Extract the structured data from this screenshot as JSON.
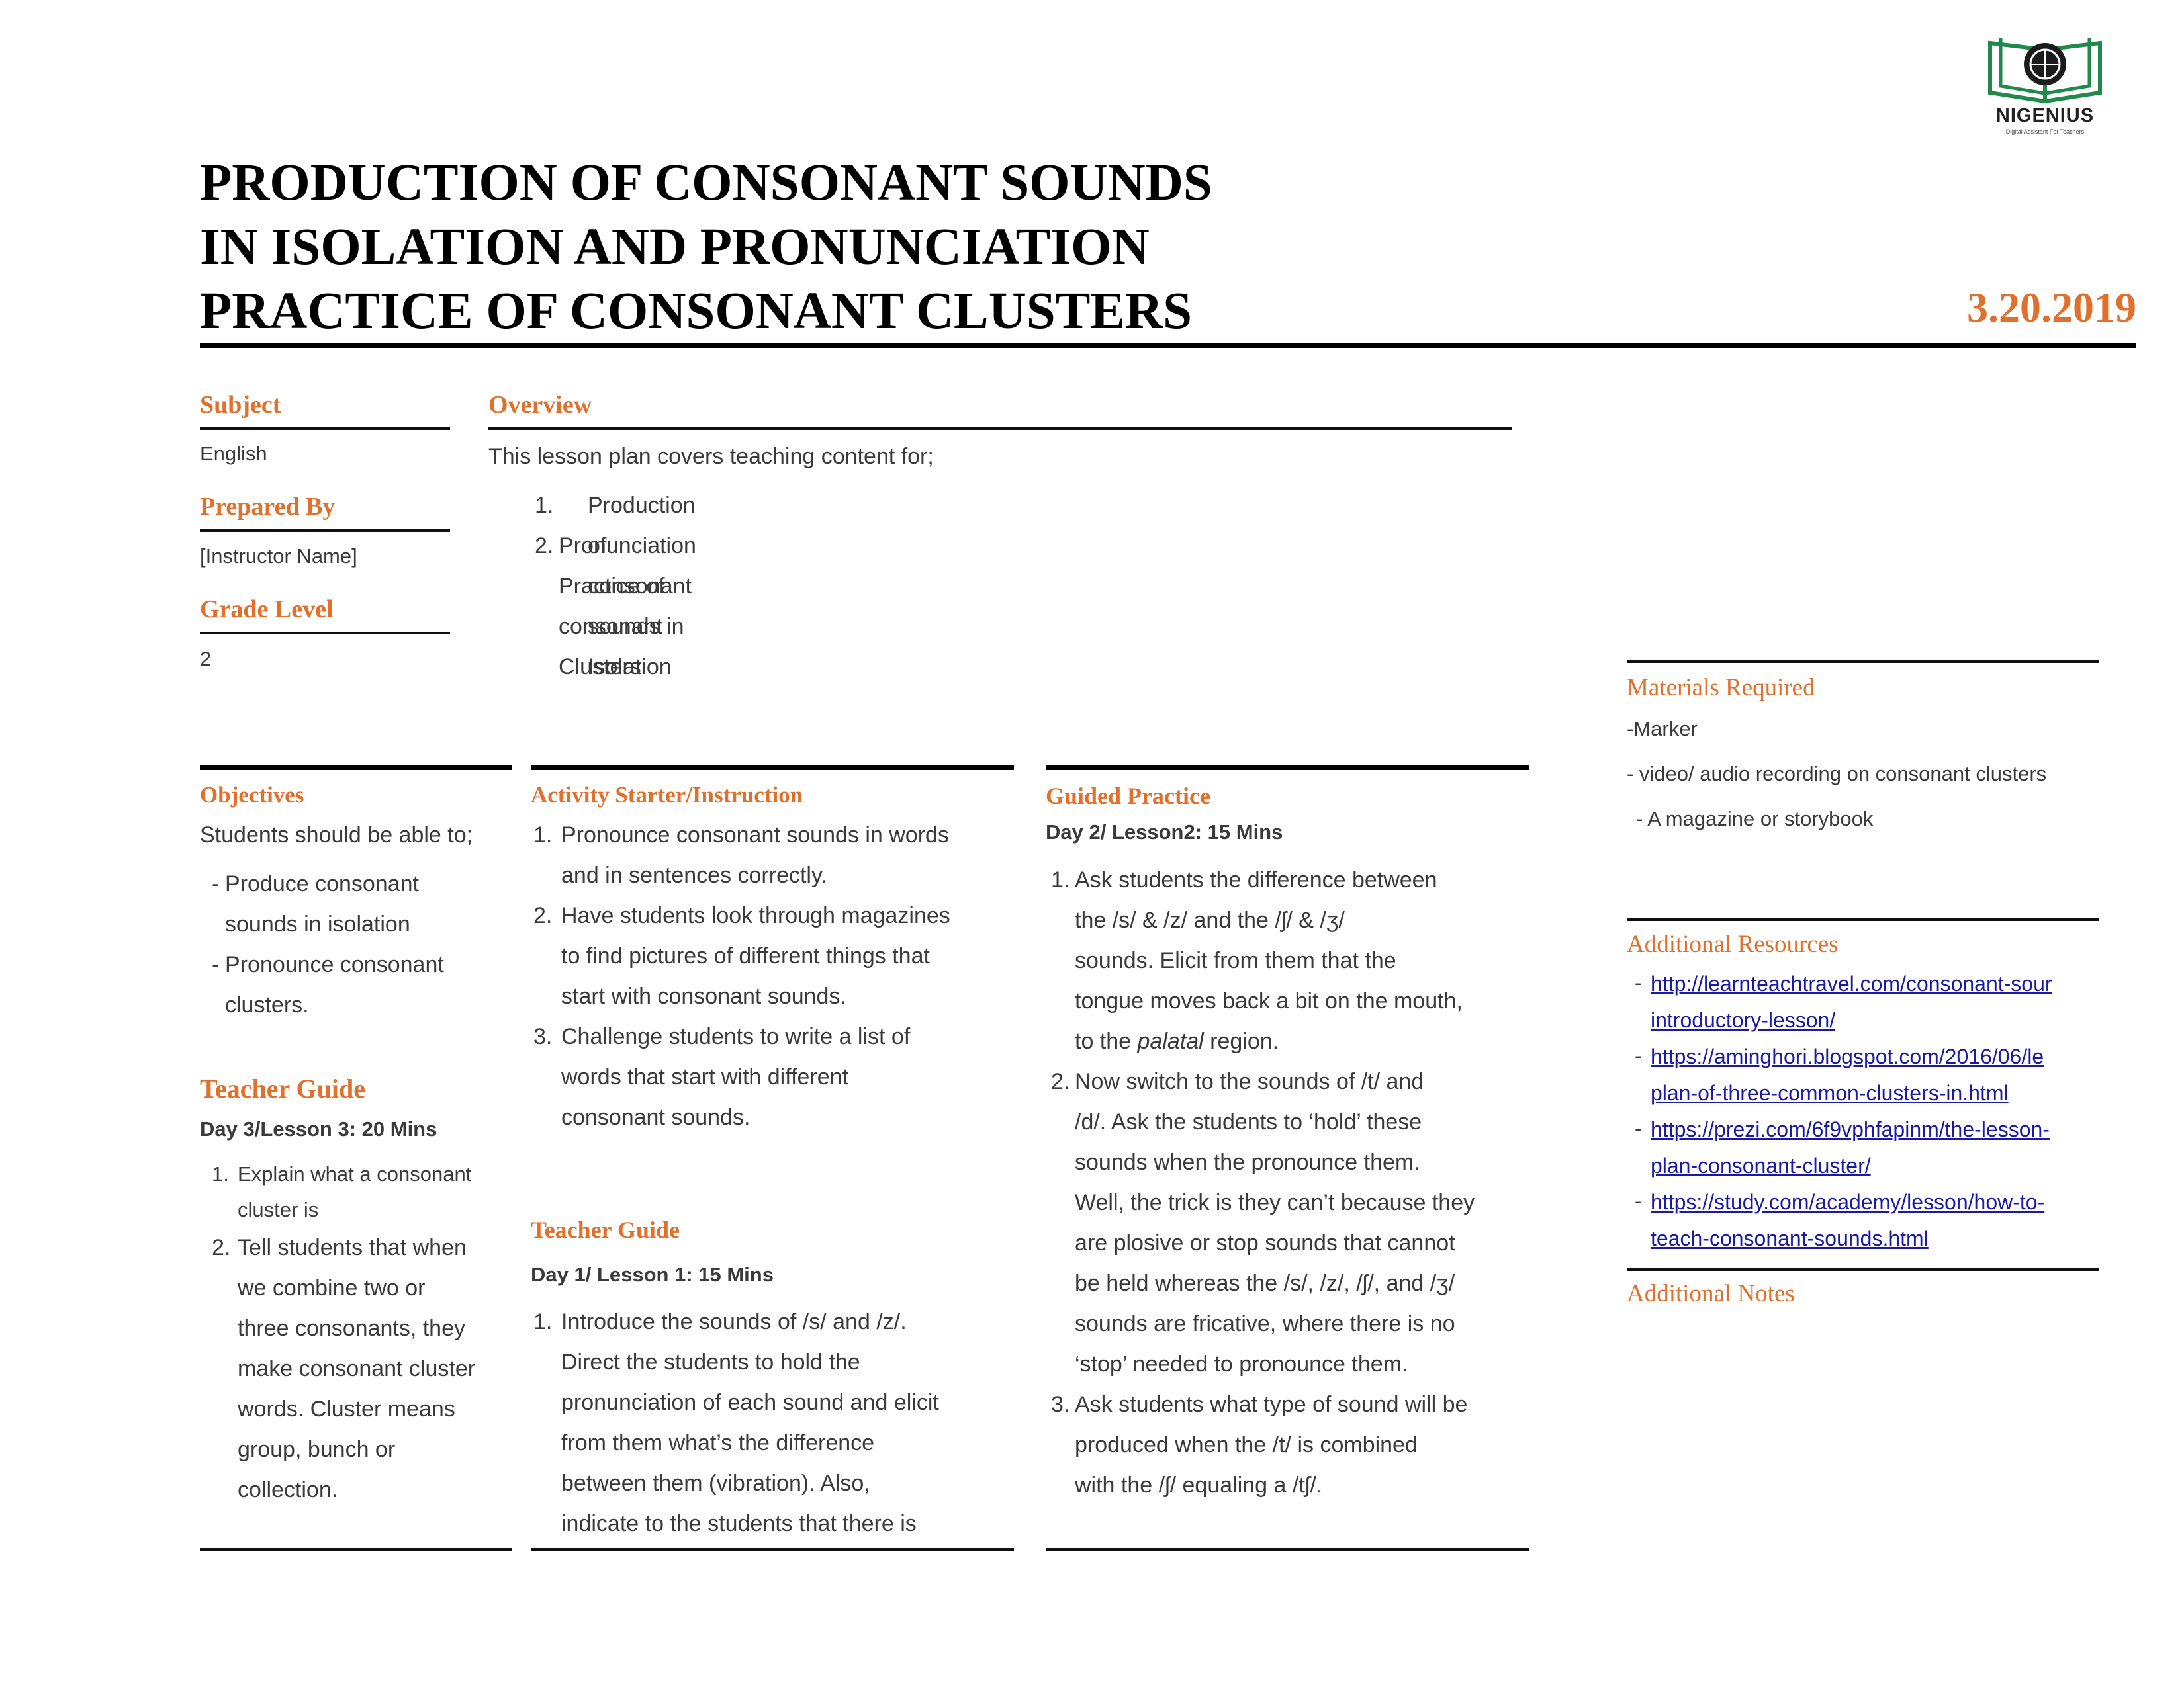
{
  "logo": {
    "brand": "NIGENIUS",
    "tagline": "Digital Assistant For Teachers",
    "icon": "open-book-globe-icon"
  },
  "title": {
    "lines": [
      "PRODUCTION OF CONSONANT SOUNDS",
      "IN ISOLATION AND PRONUNCIATION",
      "PRACTICE OF CONSONANT CLUSTERS"
    ],
    "date": "3.20.2019"
  },
  "subject": {
    "heading": "Subject",
    "value": "English"
  },
  "prepared_by": {
    "heading": "Prepared By",
    "value": "[Instructor Name]"
  },
  "grade_level": {
    "heading": "Grade Level",
    "value": "2"
  },
  "overview": {
    "heading": "Overview",
    "intro": "This lesson plan covers teaching content for;",
    "items": [
      {
        "num": "1.",
        "text": "Production of consonant sounds in Isolation"
      },
      {
        "num": "2.",
        "text": "Pronunciation Practice of consonant Clusters"
      }
    ]
  },
  "objectives": {
    "heading": "Objectives",
    "intro": "Students should be able to;",
    "items": [
      {
        "bullet": "-",
        "lines": [
          "Produce consonant",
          "sounds in isolation"
        ]
      },
      {
        "bullet": "-",
        "lines": [
          "Pronounce consonant",
          "clusters."
        ]
      }
    ]
  },
  "teacher_guide_3": {
    "heading": "Teacher Guide",
    "day": "Day 3/Lesson 3: 20 Mins",
    "items": [
      {
        "num": "1.",
        "lines": [
          "Explain what a consonant",
          "cluster is"
        ]
      },
      {
        "num": "2.",
        "lines": [
          "Tell students that when",
          "we combine two or",
          "three consonants, they",
          "make consonant cluster",
          "words. Cluster means",
          "group, bunch or",
          "collection."
        ]
      }
    ]
  },
  "activity": {
    "heading": "Activity Starter/Instruction",
    "items": [
      {
        "num": "1.",
        "lines": [
          "Pronounce consonant sounds in words",
          "and in sentences correctly."
        ]
      },
      {
        "num": "2.",
        "lines": [
          "Have students look through magazines",
          "to find pictures of different things that",
          "start with consonant sounds."
        ]
      },
      {
        "num": "3.",
        "lines": [
          "Challenge students to write a list of",
          "words that start with different",
          "consonant sounds."
        ]
      }
    ]
  },
  "teacher_guide_1": {
    "heading": "Teacher Guide",
    "day": "Day 1/ Lesson 1: 15 Mins",
    "items": [
      {
        "num": "1.",
        "lines": [
          "Introduce the sounds of /s/ and /z/.",
          "Direct the students to hold the",
          "pronunciation of each sound and elicit",
          "from them what’s the difference",
          "between them (vibration).  Also,",
          "indicate to the students that there is"
        ]
      }
    ]
  },
  "guided_practice": {
    "heading": "Guided Practice",
    "day": "Day 2/ Lesson2: 15 Mins",
    "item1": {
      "num": "1.",
      "first": "Ask students the difference between",
      "lines": [
        "the /s/ & /z/ and the /ʃ/ & /ʒ/",
        "sounds.  Elicit from them that the",
        "tongue moves back a bit on the mouth,"
      ],
      "last_pre": "to the ",
      "last_italic": "palatal",
      "last_post": " region."
    },
    "item2": {
      "num": "2.",
      "first": "Now switch to the sounds of /t/ and",
      "lines": [
        "/d/.  Ask the students to ‘hold’ these",
        "sounds when the pronounce them.",
        "Well, the trick is they can’t because they",
        "are plosive or stop sounds that cannot",
        "be held whereas the /s/, /z/, /ʃ/, and /ʒ/",
        "sounds are fricative, where there is no",
        "‘stop’ needed to pronounce them."
      ]
    },
    "item3": {
      "num": "3.",
      "first": "Ask students what type of sound will be",
      "lines": [
        "produced when the /t/ is combined",
        "with the /ʃ/ equaling a /tʃ/."
      ]
    }
  },
  "materials": {
    "heading": "Materials Required",
    "items": [
      "-Marker",
      "- video/ audio recording on consonant clusters",
      "- A magazine or storybook"
    ]
  },
  "resources": {
    "heading": "Additional Resources",
    "links": [
      {
        "line1": "http://learnteachtravel.com/consonant-sour",
        "line2": "introductory-lesson/"
      },
      {
        "line1": "https://aminghori.blogspot.com/2016/06/le",
        "line2": "plan-of-three-common-clusters-in.html"
      },
      {
        "line1": "https://prezi.com/6f9vphfapinm/the-lesson-",
        "line2": "plan-consonant-cluster/"
      },
      {
        "line1": "https://study.com/academy/lesson/how-to-",
        "line2": "teach-consonant-sounds.html"
      }
    ]
  },
  "notes": {
    "heading": "Additional Notes"
  }
}
